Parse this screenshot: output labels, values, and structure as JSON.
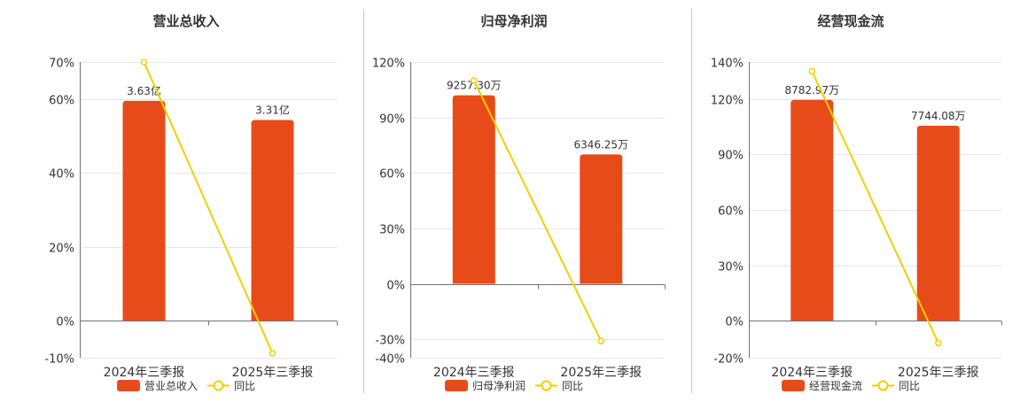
{
  "colors": {
    "bar": "#e84b1a",
    "line": "#f2cf00",
    "grid": "#e6e6ef",
    "axis": "#6e7079",
    "text": "#333333",
    "divider": "#c8c8c8"
  },
  "chart_data": [
    {
      "type": "bar",
      "title": "营业总收入",
      "categories": [
        "2024年三季报",
        "2025年三季报"
      ],
      "series": [
        {
          "name": "营业总收入",
          "kind": "bar",
          "values": [
            59.5,
            54.3
          ],
          "labels": [
            "3.63亿",
            "3.31亿"
          ]
        },
        {
          "name": "同比",
          "kind": "line",
          "values": [
            70,
            -8.8
          ]
        }
      ],
      "y_ticks": [
        70,
        60,
        40,
        20,
        0,
        -10
      ],
      "y_tick_labels": [
        "70%",
        "60%",
        "40%",
        "20%",
        "0%",
        "-10%"
      ],
      "ylim": [
        -10,
        70
      ],
      "grid": true,
      "legend_position": "bottom"
    },
    {
      "type": "bar",
      "title": "归母净利润",
      "categories": [
        "2024年三季报",
        "2025年三季报"
      ],
      "series": [
        {
          "name": "归母净利润",
          "kind": "bar",
          "values": [
            102,
            70
          ],
          "labels": [
            "9257.30万",
            "6346.25万"
          ]
        },
        {
          "name": "同比",
          "kind": "line",
          "values": [
            110,
            -31
          ]
        }
      ],
      "y_ticks": [
        120,
        90,
        60,
        30,
        0,
        -30,
        -40
      ],
      "y_tick_labels": [
        "120%",
        "90%",
        "60%",
        "30%",
        "0%",
        "-30%",
        "-40%"
      ],
      "ylim": [
        -40,
        120
      ],
      "grid": true,
      "legend_position": "bottom"
    },
    {
      "type": "bar",
      "title": "经营现金流",
      "categories": [
        "2024年三季报",
        "2025年三季报"
      ],
      "series": [
        {
          "name": "经营现金流",
          "kind": "bar",
          "values": [
            119.5,
            105.5
          ],
          "labels": [
            "8782.97万",
            "7744.08万"
          ]
        },
        {
          "name": "同比",
          "kind": "line",
          "values": [
            135,
            -12
          ]
        }
      ],
      "y_ticks": [
        140,
        120,
        90,
        60,
        30,
        0,
        -20
      ],
      "y_tick_labels": [
        "140%",
        "120%",
        "90%",
        "60%",
        "30%",
        "0%",
        "-20%"
      ],
      "ylim": [
        -20,
        140
      ],
      "grid": true,
      "legend_position": "bottom"
    }
  ]
}
